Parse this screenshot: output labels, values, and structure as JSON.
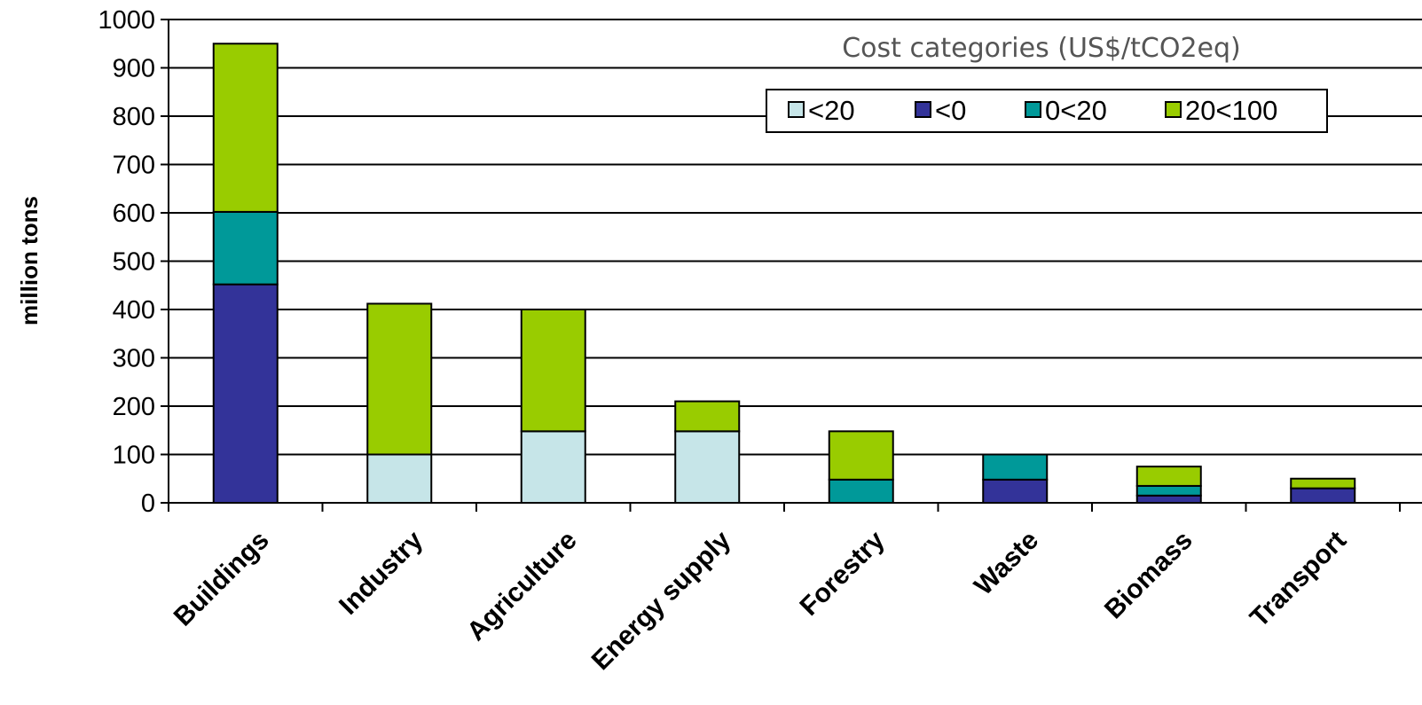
{
  "chart_data": {
    "type": "bar",
    "stacked": true,
    "categories": [
      "Buildings",
      "Industry",
      "Agriculture",
      "Energy supply",
      "Forestry",
      "Waste",
      "Biomass",
      "Transport"
    ],
    "series": [
      {
        "name": "<20",
        "color": "#c6e5e8",
        "values": [
          0,
          100,
          148,
          148,
          0,
          0,
          0,
          0
        ]
      },
      {
        "name": "<0",
        "color": "#333399",
        "values": [
          452,
          0,
          0,
          0,
          0,
          48,
          15,
          30
        ]
      },
      {
        "name": "0<20",
        "color": "#009999",
        "values": [
          150,
          0,
          0,
          0,
          48,
          52,
          20,
          0
        ]
      },
      {
        "name": "20<100",
        "color": "#99cc00",
        "values": [
          348,
          312,
          252,
          62,
          100,
          0,
          40,
          20
        ]
      }
    ],
    "ylabel": "million tons",
    "ylim": [
      0,
      1000
    ],
    "yticks": [
      0,
      100,
      200,
      300,
      400,
      500,
      600,
      700,
      800,
      900,
      1000
    ],
    "grid": true,
    "legend": {
      "title": "Cost categories (US$/tCO2eq)",
      "position": "top-right"
    }
  }
}
